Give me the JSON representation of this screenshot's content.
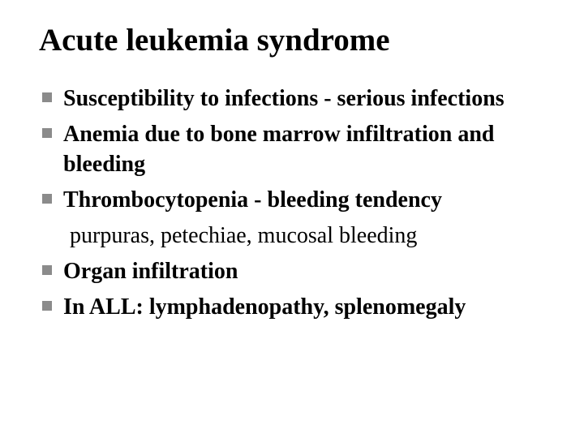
{
  "slide": {
    "title": "Acute leukemia syndrome",
    "title_fontsize": 39,
    "title_color": "#000000",
    "body_fontsize": 28,
    "body_color": "#000000",
    "bullet_color": "#8b8b8b",
    "background_color": "#ffffff"
  },
  "bullets": [
    {
      "text": "Susceptibility to infections - serious infections"
    },
    {
      "text": "Anemia due to bone marrow infiltration and bleeding"
    },
    {
      "text": "Thrombocytopenia - bleeding tendency"
    }
  ],
  "subline": " purpuras, petechiae, mucosal bleeding",
  "bullets2": [
    {
      "text": "Organ infiltration"
    },
    {
      "text": "In ALL: lymphadenopathy, splenomegaly"
    }
  ]
}
